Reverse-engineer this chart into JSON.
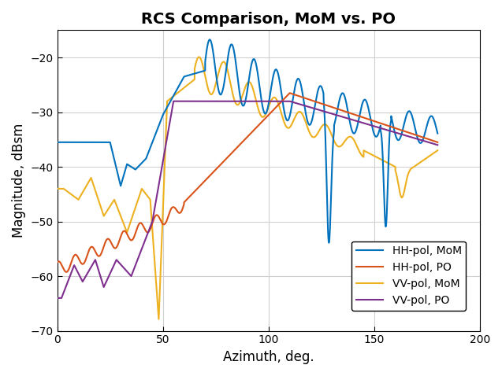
{
  "title": "RCS Comparison, MoM vs. PO",
  "xlabel": "Azimuth, deg.",
  "ylabel": "Magnitude, dBsm",
  "xlim": [
    0,
    200
  ],
  "ylim": [
    -70,
    -15
  ],
  "xticks": [
    0,
    50,
    100,
    150,
    200
  ],
  "yticks": [
    -70,
    -60,
    -50,
    -40,
    -30,
    -20
  ],
  "colors": {
    "HH_MoM": "#0072BD",
    "HH_PO": "#D95319",
    "VV_MoM": "#EDB120",
    "VV_PO": "#7E2F8E"
  },
  "legend": [
    "HH-pol, MoM",
    "HH-pol, PO",
    "VV-pol, MoM",
    "VV-pol, PO"
  ],
  "grid_color": "#d0d0d0",
  "background_color": "#ffffff",
  "linewidth": 1.5
}
